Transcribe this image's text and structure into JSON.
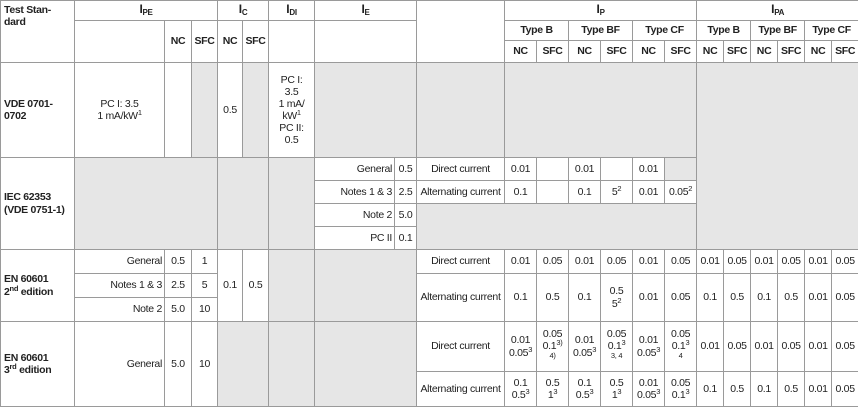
{
  "header": {
    "test_standard": [
      [
        "Test Stan-"
      ],
      [
        "dard"
      ]
    ],
    "ipe": {
      "symbol": "I",
      "sub": "PE"
    },
    "ic": {
      "symbol": "I",
      "sub": "C"
    },
    "idi": {
      "symbol": "I",
      "sub": "DI"
    },
    "ie": {
      "symbol": "I",
      "sub": "E"
    },
    "ip": {
      "symbol": "I",
      "sub": "P"
    },
    "ipa": {
      "symbol": "I",
      "sub": "PA"
    },
    "ipe_cols": [
      "NC",
      "SFC"
    ],
    "ic_cols": [
      "NC",
      "SFC"
    ],
    "ip_types": [
      "Type B",
      "Type BF",
      "Type CF"
    ],
    "ipa_types": [
      "Type B",
      "Type BF",
      "Type CF"
    ],
    "ip_cols": [
      "NC",
      "SFC",
      "NC",
      "SFC",
      "NC",
      "SFC"
    ],
    "ipa_cols": [
      "NC",
      "SFC",
      "NC",
      "SFC",
      "NC",
      "SFC"
    ]
  },
  "vde": {
    "standard": "VDE 0701-0702",
    "ipe": [
      [
        "PC I: 3.5"
      ],
      [
        "1 mA/kW",
        {
          "sup": "1"
        }
      ]
    ],
    "ic_nc": "0.5",
    "idi": [
      [
        "PC I:"
      ],
      [
        "3.5"
      ],
      [
        "1 mA/"
      ],
      [
        "kW",
        {
          "sup": "1"
        }
      ],
      [
        "PC II:"
      ],
      [
        "0.5"
      ]
    ]
  },
  "iec": {
    "standard": [
      [
        "IEC 62353"
      ],
      [
        "(VDE 0751-1)"
      ]
    ],
    "ie": [
      [
        "General",
        "0.5"
      ],
      [
        "Notes 1 & 3",
        "2.5"
      ],
      [
        "Note 2",
        "5.0"
      ],
      [
        "PC II",
        "0.1"
      ]
    ],
    "dc_label": "Direct current",
    "ac_label": "Alternating current",
    "dc": [
      "0.01",
      "0.01",
      "0.01"
    ],
    "ac": [
      "0.1",
      "0.1",
      [
        [
          "5",
          {
            "sup": "2"
          }
        ]
      ],
      "0.01",
      [
        [
          "0.05",
          {
            "sup": "2"
          }
        ]
      ]
    ]
  },
  "en2": {
    "standard": [
      [
        "EN 60601"
      ],
      [
        "2",
        {
          "sup": "nd"
        },
        " edition"
      ]
    ],
    "ipe": [
      [
        "General",
        "0.5",
        "1"
      ],
      [
        "Notes 1 & 3",
        "2.5",
        "5"
      ],
      [
        "Note 2",
        "5.0",
        "10"
      ]
    ],
    "ic": [
      "0.1",
      "0.5"
    ],
    "dc_label": "Direct current",
    "ac_label": "Alternating current",
    "dc_ip": [
      "0.01",
      "0.05",
      "0.01",
      "0.05",
      "0.01",
      "0.05"
    ],
    "dc_ipa": [
      "0.01",
      "0.05",
      "0.01",
      "0.05",
      "0.01",
      "0.05"
    ],
    "ac_ip": [
      "0.1",
      "0.5",
      "0.1",
      [
        [
          "0.5"
        ],
        [
          "5",
          {
            "sup": "2"
          }
        ]
      ],
      "0.01",
      "0.05"
    ],
    "ac_ipa": [
      "0.1",
      "0.5",
      "0.1",
      "0.5",
      "0.01",
      "0.05"
    ]
  },
  "en3": {
    "standard": [
      [
        "EN 60601"
      ],
      [
        "3",
        {
          "sup": "rd"
        },
        " edition"
      ]
    ],
    "ipe": [
      "General",
      "5.0",
      "10"
    ],
    "dc_label": "Direct current",
    "ac_label": "Alternating current",
    "dc_ip": [
      [
        [
          "0.01"
        ],
        [
          "0.05",
          {
            "sup": "3"
          }
        ]
      ],
      [
        [
          "0.05"
        ],
        [
          "0.1",
          {
            "sup": "3)"
          }
        ],
        [
          {
            "sup": "4)"
          }
        ]
      ],
      [
        [
          "0.01"
        ],
        [
          "0.05",
          {
            "sup": "3"
          }
        ]
      ],
      [
        [
          "0.05"
        ],
        [
          "0.1",
          {
            "sup": "3"
          }
        ],
        [
          {
            "sup": "3, 4"
          }
        ]
      ],
      [
        [
          "0.01"
        ],
        [
          "0.05",
          {
            "sup": "3"
          }
        ]
      ],
      [
        [
          "0.05"
        ],
        [
          "0.1",
          {
            "sup": "3"
          }
        ],
        [
          {
            "sup": "4"
          }
        ]
      ]
    ],
    "dc_ipa": [
      "0.01",
      "0.05",
      "0.01",
      "0.05",
      "0.01",
      "0.05"
    ],
    "ac_ip": [
      [
        [
          "0.1"
        ],
        [
          "0.5",
          {
            "sup": "3"
          }
        ]
      ],
      [
        [
          "0.5"
        ],
        [
          "1",
          {
            "sup": "3"
          }
        ]
      ],
      [
        [
          "0.1"
        ],
        [
          "0.5",
          {
            "sup": "3"
          }
        ]
      ],
      [
        [
          "0.5"
        ],
        [
          "1",
          {
            "sup": "3"
          }
        ]
      ],
      [
        [
          "0.01"
        ],
        [
          "0.05",
          {
            "sup": "3"
          }
        ]
      ],
      [
        [
          "0.05"
        ],
        [
          "0.1",
          {
            "sup": "3"
          }
        ]
      ]
    ],
    "ac_ipa": [
      "0.1",
      "0.5",
      "0.1",
      "0.5",
      "0.01",
      "0.05"
    ]
  }
}
